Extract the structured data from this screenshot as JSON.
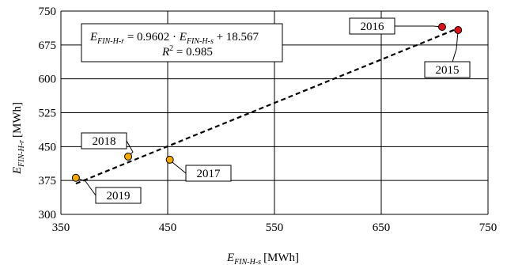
{
  "chart_data": {
    "type": "scatter",
    "title": "",
    "x_axis": {
      "label_var": "E",
      "label_sub": "FIN-H-s",
      "label_unit": "[MWh]",
      "lim": [
        350,
        750
      ],
      "ticks": [
        350,
        450,
        550,
        650,
        750
      ],
      "tick_labels": [
        "350",
        "450",
        "550",
        "650",
        "750"
      ]
    },
    "y_axis": {
      "label_var": "E",
      "label_sub": "FIN-H-r",
      "label_unit": "[MWh]",
      "lim": [
        300,
        750
      ],
      "ticks": [
        300,
        375,
        450,
        525,
        600,
        675,
        750
      ],
      "tick_labels": [
        "300",
        "375",
        "450",
        "525",
        "600",
        "675",
        "750"
      ]
    },
    "grid": true,
    "points": [
      {
        "label": "2015",
        "x": 722,
        "y": 708,
        "color": "#d7141a"
      },
      {
        "label": "2016",
        "x": 707,
        "y": 715,
        "color": "#d7141a"
      },
      {
        "label": "2017",
        "x": 452,
        "y": 421,
        "color": "#f2a900"
      },
      {
        "label": "2018",
        "x": 413,
        "y": 428,
        "color": "#f2a900"
      },
      {
        "label": "2019",
        "x": 364,
        "y": 381,
        "color": "#f2a900"
      }
    ],
    "trendline": {
      "style": "dashed",
      "slope": 0.9602,
      "intercept": 18.567,
      "x_range": [
        364,
        722
      ]
    },
    "equation": {
      "lhs_var": "E",
      "lhs_sub": "FIN-H-r",
      "middle": " = 0.9602 · ",
      "rhs_var": "E",
      "rhs_sub": "FIN-H-s",
      "tail": " + 18.567",
      "r2_var": "R",
      "r2_sup": "2",
      "r2_value": " = 0.985"
    }
  }
}
